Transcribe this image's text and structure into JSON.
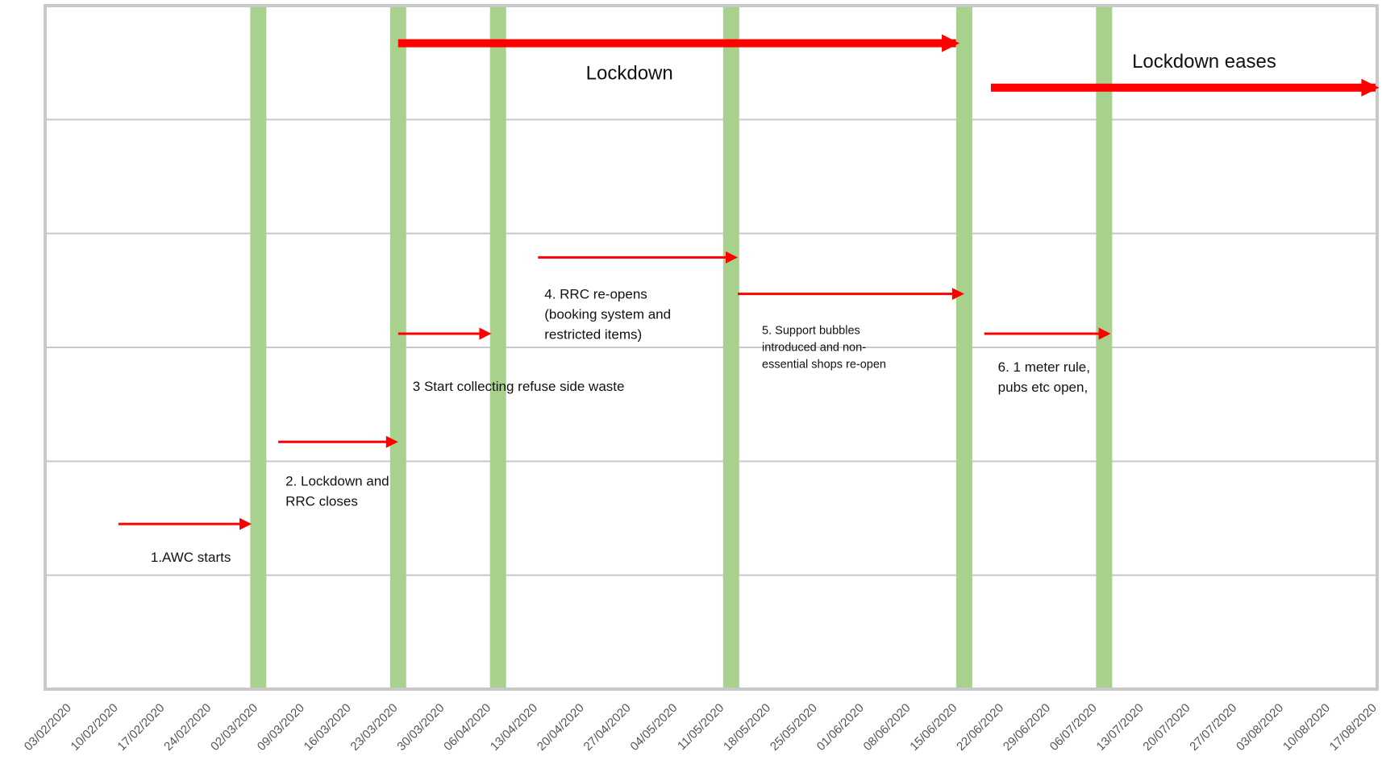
{
  "chart_data": {
    "type": "timeline",
    "x_type": "date",
    "x_ticks": [
      "03/02/2020",
      "10/02/2020",
      "17/02/2020",
      "24/02/2020",
      "02/03/2020",
      "09/03/2020",
      "16/03/2020",
      "23/03/2020",
      "30/03/2020",
      "06/04/2020",
      "13/04/2020",
      "20/04/2020",
      "27/04/2020",
      "04/05/2020",
      "11/05/2020",
      "18/05/2020",
      "25/05/2020",
      "01/06/2020",
      "08/06/2020",
      "15/06/2020",
      "22/06/2020",
      "29/06/2020",
      "06/07/2020",
      "13/07/2020",
      "20/07/2020",
      "27/07/2020",
      "03/08/2020",
      "10/08/2020",
      "17/08/2020"
    ],
    "xlim": [
      "2020-01-30",
      "2020-08-17"
    ],
    "y_bands": 6,
    "grid": true,
    "colors": {
      "marker": "#a9d18e",
      "arrow": "#ff0000",
      "grid": "#c8c8c8",
      "frame": "#c8c8c8"
    },
    "markers": [
      "2020-03-02",
      "2020-03-23",
      "2020-04-07",
      "2020-05-12",
      "2020-06-16",
      "2020-07-07"
    ],
    "periods": [
      {
        "label": "Lockdown",
        "start": "2020-03-23",
        "end": "2020-06-15",
        "band": 5.67
      },
      {
        "label": "Lockdown eases",
        "start": "2020-06-20",
        "end": "2020-08-17",
        "band": 5.28
      }
    ],
    "events": [
      {
        "lines": [
          "1.AWC starts"
        ],
        "start": "2020-02-10",
        "end": "2020-03-01",
        "band": 1.45
      },
      {
        "lines": [
          "2. Lockdown and",
          "RRC closes"
        ],
        "start": "2020-03-05",
        "end": "2020-03-23",
        "band": 2.17
      },
      {
        "lines": [
          "3 Start collecting refuse side waste"
        ],
        "start": "2020-03-23",
        "end": "2020-04-06",
        "band": 3.12
      },
      {
        "lines": [
          "4. RRC re-opens",
          "(booking system and",
          "restricted items)"
        ],
        "start": "2020-04-13",
        "end": "2020-05-13",
        "band": 3.79
      },
      {
        "lines": [
          "5. Support bubbles",
          "introduced and non-",
          "essential shops re-open"
        ],
        "start": "2020-05-13",
        "end": "2020-06-16",
        "band": 3.47
      },
      {
        "lines": [
          "6. 1 meter rule,",
          "pubs etc open,"
        ],
        "start": "2020-06-19",
        "end": "2020-07-08",
        "band": 3.12
      }
    ]
  }
}
